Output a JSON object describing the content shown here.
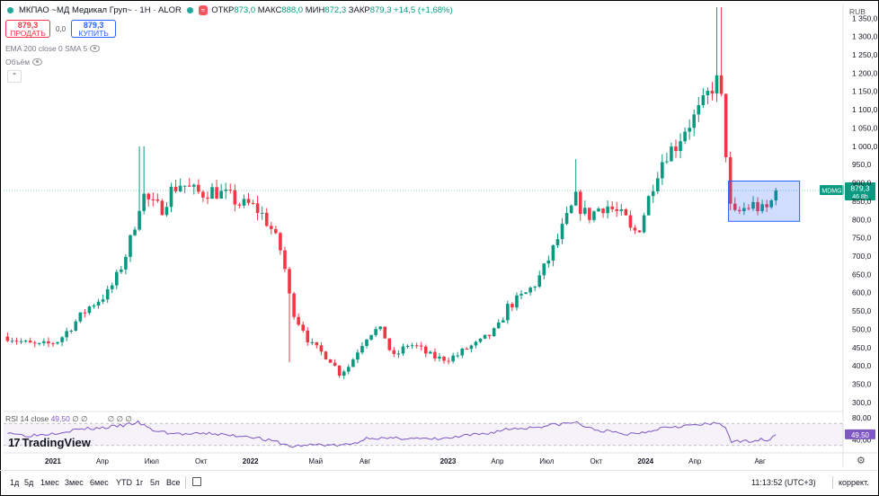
{
  "header": {
    "symbol": "МКПАО ~МД Медикал Груп~ · 1Н · ALOR",
    "badge": "≈",
    "ohlc": {
      "open_label": "ОТКР",
      "open": "873,0",
      "high_label": "МАКС",
      "high": "888,0",
      "low_label": "МИН",
      "low": "872,3",
      "close_label": "ЗАКР",
      "close": "879,3",
      "change": "+14,5 (+1,68%)"
    }
  },
  "trade": {
    "sell_price": "879,3",
    "sell_label": "ПРОДАТЬ",
    "spread": "0,0",
    "buy_price": "879,3",
    "buy_label": "КУПИТЬ"
  },
  "indicators": {
    "ema_sma": "EMA 200 close 0 SMA 5",
    "volume": "Объём"
  },
  "currency": "RUB",
  "price_tag": {
    "ticker": "MDMG",
    "price": "879,3",
    "countdown": "46 8h"
  },
  "rsi": {
    "label": "RSI 14 close",
    "value": "49,50",
    "extra1": "∅",
    "extra2": "∅",
    "extra3": "∅ ∅ ∅"
  },
  "logo": {
    "text": "TradingView",
    "mark": "17"
  },
  "bottom": {
    "timeframes": [
      "1д",
      "5д",
      "1мес",
      "3мес",
      "6мес",
      "YTD",
      "1г",
      "5л",
      "Все"
    ],
    "clock": "11:13:52 (UTC+3)",
    "correction": "коррект."
  },
  "colors": {
    "up": "#089981",
    "down": "#f23645",
    "rsi_line": "#7e57c2",
    "box": "#2962ff"
  },
  "chart_data": {
    "type": "candlestick",
    "y_axis_ticks": [
      "300,0",
      "350,0",
      "400,0",
      "450,0",
      "500,0",
      "550,0",
      "600,0",
      "650,0",
      "700,0",
      "750,0",
      "800,0",
      "850,0",
      "900,0",
      "950,0",
      "1 000,0",
      "1 050,0",
      "1 100,0",
      "1 150,0",
      "1 200,0",
      "1 250,0",
      "1 300,0",
      "1 350,0"
    ],
    "y_range": [
      280,
      1390
    ],
    "x_axis_labels": [
      {
        "label": "2021",
        "t": 2021.0,
        "bold": true
      },
      {
        "label": "Апр",
        "t": 2021.25
      },
      {
        "label": "Июл",
        "t": 2021.5
      },
      {
        "label": "Окт",
        "t": 2021.75
      },
      {
        "label": "2022",
        "t": 2022.0,
        "bold": true
      },
      {
        "label": "Май",
        "t": 2022.33
      },
      {
        "label": "Авг",
        "t": 2022.58
      },
      {
        "label": "2023",
        "t": 2023.0,
        "bold": true
      },
      {
        "label": "Апр",
        "t": 2023.25
      },
      {
        "label": "Июл",
        "t": 2023.5
      },
      {
        "label": "Окт",
        "t": 2023.75
      },
      {
        "label": "2024",
        "t": 2024.0,
        "bold": true
      },
      {
        "label": "Апр",
        "t": 2024.25
      },
      {
        "label": "Авг",
        "t": 2024.58
      }
    ],
    "x_range": [
      2020.75,
      2025.0
    ],
    "last_price": 879.3,
    "close_path": [
      [
        2020.77,
        480
      ],
      [
        2020.82,
        470
      ],
      [
        2020.87,
        460
      ],
      [
        2020.93,
        455
      ],
      [
        2020.98,
        460
      ],
      [
        2021.03,
        470
      ],
      [
        2021.08,
        500
      ],
      [
        2021.13,
        530
      ],
      [
        2021.18,
        560
      ],
      [
        2021.23,
        580
      ],
      [
        2021.28,
        600
      ],
      [
        2021.33,
        650
      ],
      [
        2021.38,
        720
      ],
      [
        2021.42,
        800
      ],
      [
        2021.45,
        870
      ],
      [
        2021.47,
        860
      ],
      [
        2021.5,
        840
      ],
      [
        2021.55,
        830
      ],
      [
        2021.6,
        880
      ],
      [
        2021.65,
        900
      ],
      [
        2021.7,
        880
      ],
      [
        2021.75,
        870
      ],
      [
        2021.8,
        880
      ],
      [
        2021.85,
        870
      ],
      [
        2021.9,
        860
      ],
      [
        2021.95,
        840
      ],
      [
        2022.0,
        840
      ],
      [
        2022.05,
        820
      ],
      [
        2022.1,
        780
      ],
      [
        2022.15,
        720
      ],
      [
        2022.18,
        650
      ],
      [
        2022.2,
        580
      ],
      [
        2022.23,
        530
      ],
      [
        2022.27,
        500
      ],
      [
        2022.3,
        460
      ],
      [
        2022.35,
        440
      ],
      [
        2022.4,
        420
      ],
      [
        2022.45,
        380
      ],
      [
        2022.5,
        400
      ],
      [
        2022.55,
        450
      ],
      [
        2022.6,
        490
      ],
      [
        2022.65,
        500
      ],
      [
        2022.68,
        480
      ],
      [
        2022.72,
        420
      ],
      [
        2022.76,
        440
      ],
      [
        2022.8,
        460
      ],
      [
        2022.85,
        450
      ],
      [
        2022.9,
        430
      ],
      [
        2022.95,
        420
      ],
      [
        2023.0,
        420
      ],
      [
        2023.05,
        430
      ],
      [
        2023.1,
        450
      ],
      [
        2023.15,
        460
      ],
      [
        2023.2,
        480
      ],
      [
        2023.25,
        500
      ],
      [
        2023.3,
        560
      ],
      [
        2023.35,
        580
      ],
      [
        2023.4,
        600
      ],
      [
        2023.45,
        630
      ],
      [
        2023.5,
        680
      ],
      [
        2023.55,
        740
      ],
      [
        2023.6,
        800
      ],
      [
        2023.65,
        860
      ],
      [
        2023.68,
        820
      ],
      [
        2023.72,
        810
      ],
      [
        2023.76,
        830
      ],
      [
        2023.8,
        840
      ],
      [
        2023.85,
        820
      ],
      [
        2023.9,
        800
      ],
      [
        2023.93,
        760
      ],
      [
        2023.97,
        780
      ],
      [
        2024.0,
        830
      ],
      [
        2024.05,
        920
      ],
      [
        2024.1,
        980
      ],
      [
        2024.15,
        1000
      ],
      [
        2024.2,
        1050
      ],
      [
        2024.25,
        1080
      ],
      [
        2024.3,
        1120
      ],
      [
        2024.33,
        1160
      ],
      [
        2024.37,
        1180
      ],
      [
        2024.4,
        1060
      ],
      [
        2024.42,
        840
      ],
      [
        2024.45,
        810
      ],
      [
        2024.5,
        830
      ],
      [
        2024.55,
        840
      ],
      [
        2024.6,
        820
      ],
      [
        2024.63,
        840
      ],
      [
        2024.66,
        879.3
      ]
    ],
    "wick_spikes": [
      {
        "t": 2021.45,
        "high": 1000
      },
      {
        "t": 2022.2,
        "low": 410
      },
      {
        "t": 2023.65,
        "high": 965
      },
      {
        "t": 2024.37,
        "high": 1380
      }
    ],
    "rsi": {
      "y_ticks": [
        "80,00",
        "40,00"
      ],
      "y_range": [
        20,
        85
      ],
      "band": [
        30,
        70
      ],
      "last": 49.5,
      "points": [
        [
          2020.77,
          55
        ],
        [
          2020.85,
          48
        ],
        [
          2020.95,
          50
        ],
        [
          2021.05,
          55
        ],
        [
          2021.15,
          60
        ],
        [
          2021.25,
          62
        ],
        [
          2021.35,
          66
        ],
        [
          2021.43,
          72
        ],
        [
          2021.5,
          58
        ],
        [
          2021.6,
          52
        ],
        [
          2021.7,
          50
        ],
        [
          2021.8,
          52
        ],
        [
          2021.9,
          48
        ],
        [
          2022.0,
          47
        ],
        [
          2022.08,
          40
        ],
        [
          2022.15,
          35
        ],
        [
          2022.2,
          28
        ],
        [
          2022.27,
          30
        ],
        [
          2022.35,
          32
        ],
        [
          2022.45,
          30
        ],
        [
          2022.52,
          33
        ],
        [
          2022.6,
          45
        ],
        [
          2022.7,
          42
        ],
        [
          2022.8,
          44
        ],
        [
          2022.9,
          41
        ],
        [
          2023.0,
          43
        ],
        [
          2023.1,
          48
        ],
        [
          2023.2,
          52
        ],
        [
          2023.3,
          60
        ],
        [
          2023.4,
          62
        ],
        [
          2023.5,
          66
        ],
        [
          2023.6,
          70
        ],
        [
          2023.65,
          72
        ],
        [
          2023.72,
          60
        ],
        [
          2023.8,
          56
        ],
        [
          2023.9,
          50
        ],
        [
          2024.0,
          55
        ],
        [
          2024.1,
          64
        ],
        [
          2024.2,
          66
        ],
        [
          2024.3,
          68
        ],
        [
          2024.37,
          70
        ],
        [
          2024.41,
          62
        ],
        [
          2024.43,
          38
        ],
        [
          2024.48,
          36
        ],
        [
          2024.55,
          40
        ],
        [
          2024.62,
          41
        ],
        [
          2024.66,
          49.5
        ]
      ]
    }
  }
}
